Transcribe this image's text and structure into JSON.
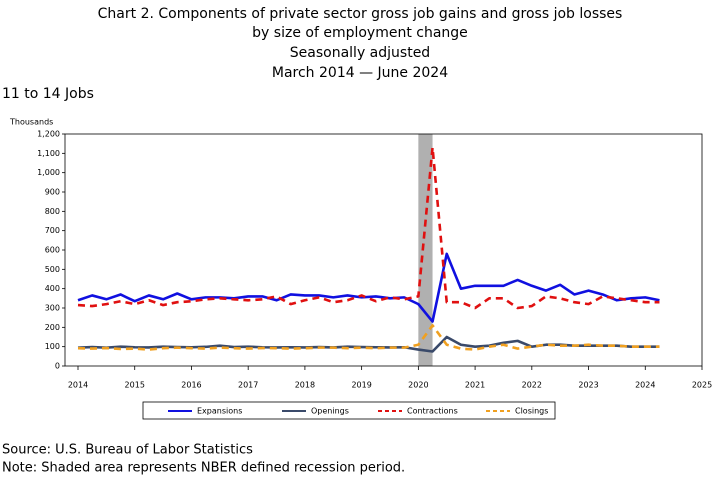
{
  "chart_data": {
    "type": "line",
    "title": [
      "Chart 2. Components of private sector gross job gains and gross job losses",
      "by size of employment change",
      "Seasonally adjusted",
      "March 2014 — June 2024"
    ],
    "subtitle": "11 to 14 Jobs",
    "y_label": "Thousands",
    "source": "Source: U.S. Bureau of Labor Statistics",
    "note": "Note: Shaded area represents NBER defined recession period.",
    "x": [
      2014,
      2014.25,
      2014.5,
      2014.75,
      2015,
      2015.25,
      2015.5,
      2015.75,
      2016,
      2016.25,
      2016.5,
      2016.75,
      2017,
      2017.25,
      2017.5,
      2017.75,
      2018,
      2018.25,
      2018.5,
      2018.75,
      2019,
      2019.25,
      2019.5,
      2019.75,
      2020,
      2020.25,
      2020.5,
      2020.75,
      2021,
      2021.25,
      2021.5,
      2021.75,
      2022,
      2022.25,
      2022.5,
      2022.75,
      2023,
      2023.25,
      2023.5,
      2023.75,
      2024,
      2024.25
    ],
    "series": [
      {
        "name": "Expansions",
        "color": "#1010e0",
        "dashed": false,
        "values": [
          340,
          365,
          345,
          370,
          335,
          365,
          345,
          375,
          345,
          355,
          355,
          350,
          360,
          360,
          340,
          370,
          365,
          365,
          355,
          365,
          355,
          360,
          350,
          355,
          320,
          230,
          580,
          400,
          415,
          415,
          415,
          445,
          415,
          390,
          420,
          370,
          390,
          370,
          340,
          350,
          355,
          340
        ]
      },
      {
        "name": "Openings",
        "color": "#3a4a6a",
        "dashed": false,
        "values": [
          95,
          98,
          95,
          100,
          97,
          96,
          100,
          98,
          97,
          99,
          105,
          98,
          100,
          97,
          96,
          97,
          96,
          98,
          96,
          100,
          98,
          97,
          96,
          97,
          85,
          75,
          150,
          110,
          100,
          105,
          120,
          130,
          100,
          110,
          110,
          105,
          105,
          105,
          105,
          100,
          100,
          100
        ]
      },
      {
        "name": "Contractions",
        "color": "#e01010",
        "dashed": true,
        "values": [
          315,
          310,
          320,
          335,
          320,
          340,
          315,
          330,
          335,
          345,
          350,
          345,
          340,
          345,
          360,
          320,
          340,
          355,
          330,
          340,
          365,
          335,
          355,
          345,
          360,
          1130,
          330,
          330,
          300,
          350,
          350,
          300,
          310,
          360,
          350,
          330,
          320,
          360,
          350,
          340,
          330,
          330
        ]
      },
      {
        "name": "Closings",
        "color": "#f0a020",
        "dashed": true,
        "values": [
          92,
          90,
          93,
          88,
          90,
          85,
          92,
          95,
          92,
          90,
          95,
          92,
          90,
          93,
          92,
          90,
          92,
          95,
          95,
          92,
          95,
          92,
          95,
          95,
          110,
          210,
          110,
          90,
          85,
          100,
          110,
          90,
          100,
          110,
          105,
          105,
          110,
          105,
          105,
          100,
          100,
          100
        ]
      }
    ],
    "recession": [
      2020,
      2020.25
    ],
    "recession_color": "#b0b0b0",
    "xlim": [
      2014,
      2025
    ],
    "xticks": [
      2014,
      2015,
      2016,
      2017,
      2018,
      2019,
      2020,
      2021,
      2022,
      2023,
      2024,
      2025
    ],
    "ylim": [
      0,
      1200
    ],
    "yticks": [
      0,
      100,
      200,
      300,
      400,
      500,
      600,
      700,
      800,
      900,
      {
        "value": 1000,
        "label": "1,000"
      },
      {
        "value": 1100,
        "label": "1,100"
      },
      {
        "value": 1200,
        "label": "1,200"
      }
    ],
    "grid": false,
    "legend": "bottom"
  }
}
